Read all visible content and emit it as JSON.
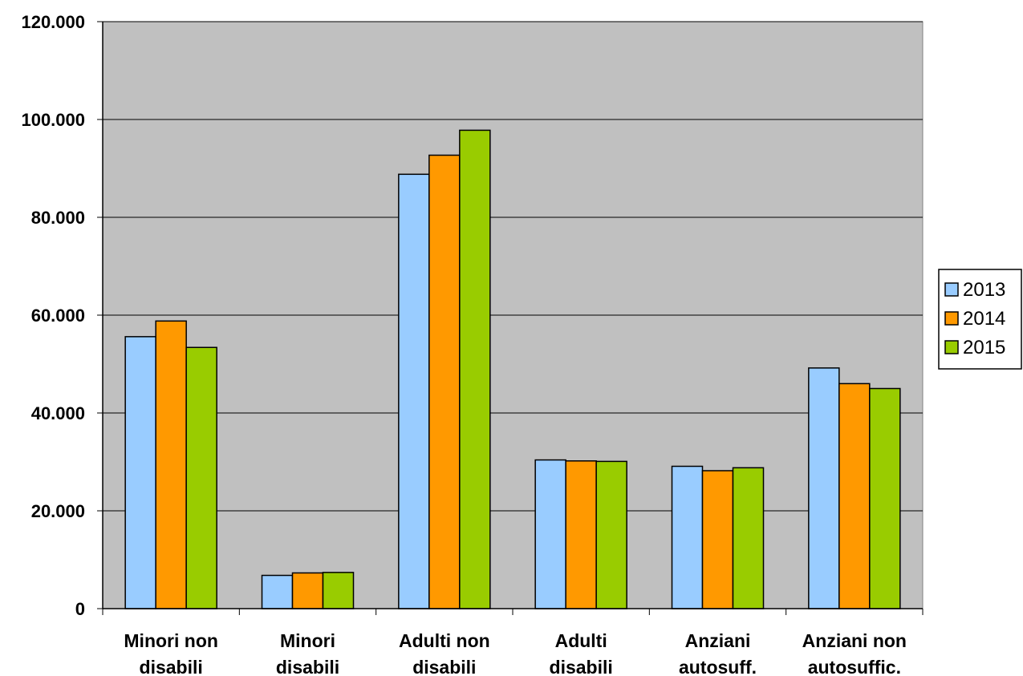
{
  "chart_data": {
    "type": "bar",
    "categories": [
      [
        "Minori non",
        "disabili"
      ],
      [
        "Minori",
        "disabili"
      ],
      [
        "Adulti non",
        "disabili"
      ],
      [
        "Adulti",
        "disabili"
      ],
      [
        "Anziani",
        "autosuff."
      ],
      [
        "Anziani non",
        "autosuffic."
      ]
    ],
    "series": [
      {
        "name": "2013",
        "color": "#99ccff",
        "values": [
          55600,
          6800,
          88800,
          30400,
          29100,
          49200
        ]
      },
      {
        "name": "2014",
        "color": "#ff9900",
        "values": [
          58800,
          7300,
          92700,
          30200,
          28200,
          46000
        ]
      },
      {
        "name": "2015",
        "color": "#99cc00",
        "values": [
          53400,
          7400,
          97800,
          30100,
          28800,
          45000
        ]
      }
    ],
    "ylim": [
      0,
      120000
    ],
    "yticks": [
      {
        "value": 0,
        "label": "0"
      },
      {
        "value": 20000,
        "label": "20.000"
      },
      {
        "value": 40000,
        "label": "40.000"
      },
      {
        "value": 60000,
        "label": "60.000"
      },
      {
        "value": 80000,
        "label": "80.000"
      },
      {
        "value": 100000,
        "label": "100.000"
      },
      {
        "value": 120000,
        "label": "120.000"
      }
    ],
    "title": "",
    "xlabel": "",
    "ylabel": "",
    "grid": true,
    "plot_background": "#c0c0c0",
    "legend": {
      "position": "right"
    }
  }
}
